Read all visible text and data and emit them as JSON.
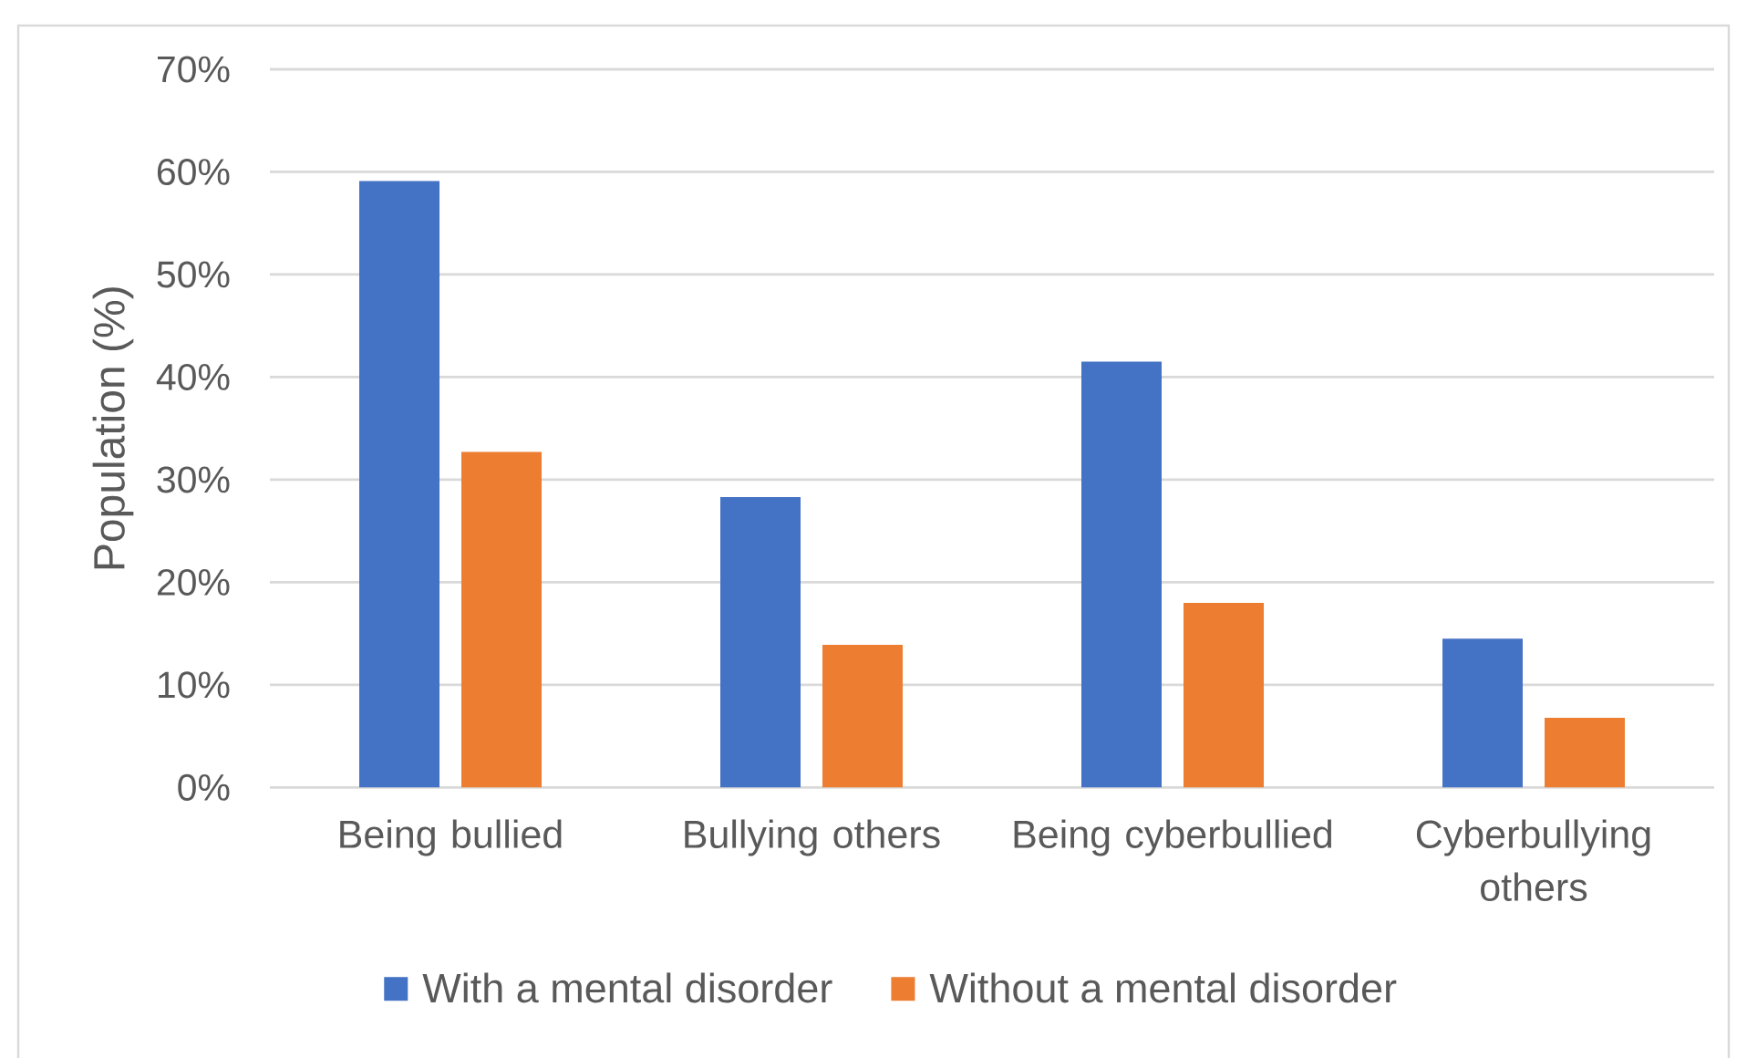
{
  "chart_data": {
    "type": "bar",
    "categories": [
      "Being bullied",
      "Bullying others",
      "Being cyberbullied",
      "Cyberbullying others"
    ],
    "series": [
      {
        "name": "With a mental disorder",
        "color": "#4472c4",
        "values": [
          59.1,
          28.3,
          41.5,
          14.5
        ]
      },
      {
        "name": "Without a mental disorder",
        "color": "#ed7d31",
        "values": [
          32.7,
          13.9,
          18.0,
          6.8
        ]
      }
    ],
    "ylabel": "Population (%)",
    "ylim": [
      0,
      70
    ],
    "yticks": [
      {
        "value": 0,
        "label": "0%"
      },
      {
        "value": 10,
        "label": "10%"
      },
      {
        "value": 20,
        "label": "20%"
      },
      {
        "value": 30,
        "label": "30%"
      },
      {
        "value": 40,
        "label": "40%"
      },
      {
        "value": 50,
        "label": "50%"
      },
      {
        "value": 60,
        "label": "60%"
      },
      {
        "value": 70,
        "label": "70%"
      }
    ],
    "grid": "y",
    "legend": "bottom"
  }
}
